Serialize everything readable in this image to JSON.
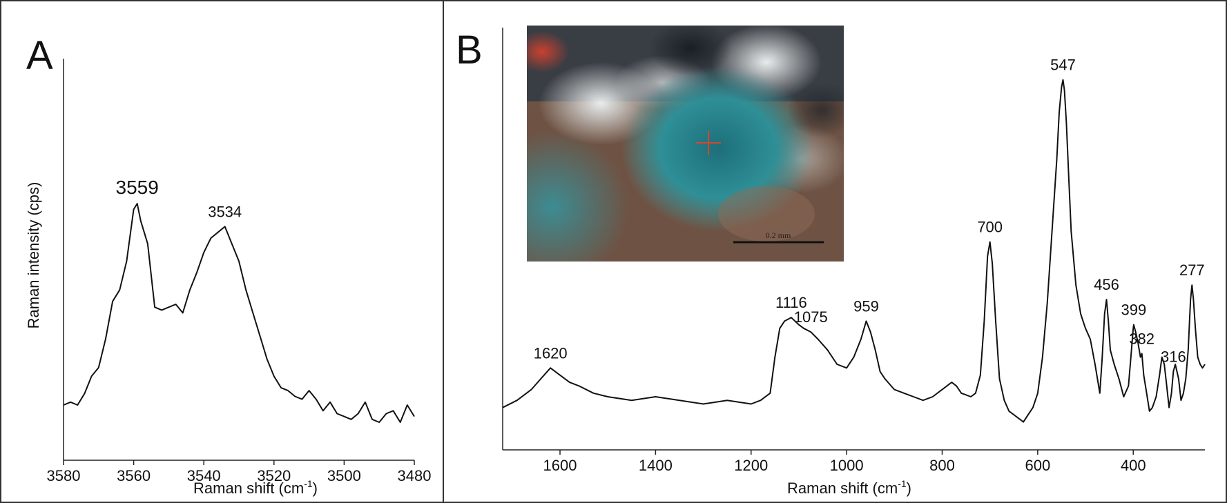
{
  "panels": {
    "a": {
      "letter": "A"
    },
    "b": {
      "letter": "B"
    }
  },
  "inset": {
    "scale_bar_label": "0.2 mm",
    "icon": "micrograph-photo"
  },
  "chart_data": [
    {
      "type": "line",
      "xlabel": "Raman shift (cm",
      "xlabel_sup": "-1",
      "xlabel_close": ")",
      "ylabel": "Raman intensity (cps)",
      "xlim": [
        3580,
        3480
      ],
      "x_reversed": true,
      "x_ticks": [
        "3580",
        "3560",
        "3540",
        "3520",
        "3500",
        "3480"
      ],
      "y_ticks": [],
      "ylim": [
        0,
        100
      ],
      "series": [
        {
          "x": [
            3580,
            3578,
            3576,
            3574,
            3572,
            3570,
            3568,
            3566,
            3564,
            3562,
            3560,
            3559,
            3558,
            3556,
            3554,
            3552,
            3550,
            3548,
            3546,
            3544,
            3542,
            3540,
            3538,
            3536,
            3534,
            3532,
            3530,
            3528,
            3526,
            3524,
            3522,
            3520,
            3518,
            3516,
            3514,
            3512,
            3510,
            3508,
            3506,
            3504,
            3502,
            3500,
            3498,
            3496,
            3494,
            3492,
            3490,
            3488,
            3486,
            3484,
            3482,
            3480
          ],
          "y": [
            12,
            13,
            12,
            16,
            22,
            25,
            35,
            48,
            52,
            62,
            80,
            82,
            76,
            68,
            46,
            45,
            46,
            47,
            44,
            52,
            58,
            65,
            70,
            72,
            74,
            68,
            62,
            52,
            44,
            36,
            28,
            22,
            18,
            17,
            15,
            14,
            17,
            14,
            10,
            13,
            9,
            8,
            7,
            9,
            13,
            7,
            6,
            9,
            10,
            6,
            12,
            8
          ]
        }
      ],
      "annotations": [
        {
          "x": 3559,
          "y": 82,
          "label": "3559"
        },
        {
          "x": 3534,
          "y": 74,
          "label": "3534"
        }
      ]
    },
    {
      "type": "line",
      "xlabel": "Raman shift (cm",
      "xlabel_sup": "-1",
      "xlabel_close": ")",
      "ylabel": "",
      "xlim": [
        1720,
        250
      ],
      "x_reversed": true,
      "x_ticks": [
        "1600",
        "1400",
        "1200",
        "1000",
        "800",
        "600",
        "400"
      ],
      "y_ticks": [],
      "ylim": [
        0,
        100
      ],
      "series": [
        {
          "x": [
            1720,
            1690,
            1660,
            1640,
            1620,
            1600,
            1580,
            1560,
            1530,
            1500,
            1450,
            1400,
            1350,
            1300,
            1250,
            1200,
            1180,
            1160,
            1150,
            1140,
            1130,
            1116,
            1100,
            1090,
            1075,
            1060,
            1040,
            1020,
            1000,
            985,
            970,
            959,
            950,
            940,
            930,
            920,
            900,
            880,
            860,
            840,
            820,
            800,
            780,
            770,
            760,
            740,
            730,
            720,
            712,
            705,
            700,
            695,
            688,
            680,
            670,
            660,
            650,
            640,
            630,
            620,
            610,
            600,
            590,
            580,
            570,
            560,
            555,
            550,
            547,
            544,
            540,
            535,
            530,
            520,
            510,
            500,
            490,
            480,
            470,
            465,
            460,
            456,
            452,
            448,
            440,
            430,
            420,
            410,
            405,
            400,
            399,
            395,
            390,
            385,
            382,
            378,
            372,
            366,
            360,
            352,
            345,
            340,
            335,
            330,
            325,
            320,
            316,
            312,
            305,
            300,
            295,
            290,
            285,
            280,
            277,
            274,
            270,
            265,
            260,
            255,
            250
          ],
          "y": [
            6,
            8,
            11,
            14,
            17,
            15,
            13,
            12,
            10,
            9,
            8,
            9,
            8,
            7,
            8,
            7,
            8,
            10,
            20,
            28,
            30,
            31,
            29,
            28,
            27,
            25,
            22,
            18,
            17,
            20,
            25,
            30,
            27,
            22,
            16,
            14,
            11,
            10,
            9,
            8,
            9,
            11,
            13,
            12,
            10,
            9,
            10,
            15,
            30,
            48,
            52,
            46,
            30,
            14,
            8,
            5,
            4,
            3,
            2,
            4,
            6,
            10,
            20,
            35,
            55,
            75,
            88,
            95,
            97,
            94,
            85,
            70,
            55,
            40,
            32,
            28,
            25,
            18,
            10,
            20,
            32,
            36,
            30,
            22,
            18,
            14,
            9,
            12,
            20,
            28,
            29,
            27,
            24,
            20,
            21,
            15,
            10,
            5,
            6,
            9,
            15,
            20,
            18,
            12,
            6,
            10,
            16,
            18,
            14,
            8,
            10,
            14,
            22,
            36,
            40,
            36,
            28,
            20,
            18,
            17,
            18
          ]
        }
      ],
      "annotations": [
        {
          "x": 1620,
          "y": 17,
          "label": "1620"
        },
        {
          "x": 1116,
          "y": 31,
          "label": "1116"
        },
        {
          "x": 1075,
          "y": 27,
          "label": "1075"
        },
        {
          "x": 959,
          "y": 30,
          "label": "959"
        },
        {
          "x": 700,
          "y": 52,
          "label": "700"
        },
        {
          "x": 547,
          "y": 97,
          "label": "547"
        },
        {
          "x": 456,
          "y": 36,
          "label": "456"
        },
        {
          "x": 399,
          "y": 29,
          "label": "399"
        },
        {
          "x": 382,
          "y": 21,
          "label": "382"
        },
        {
          "x": 316,
          "y": 16,
          "label": "316"
        },
        {
          "x": 277,
          "y": 40,
          "label": "277"
        }
      ]
    }
  ]
}
